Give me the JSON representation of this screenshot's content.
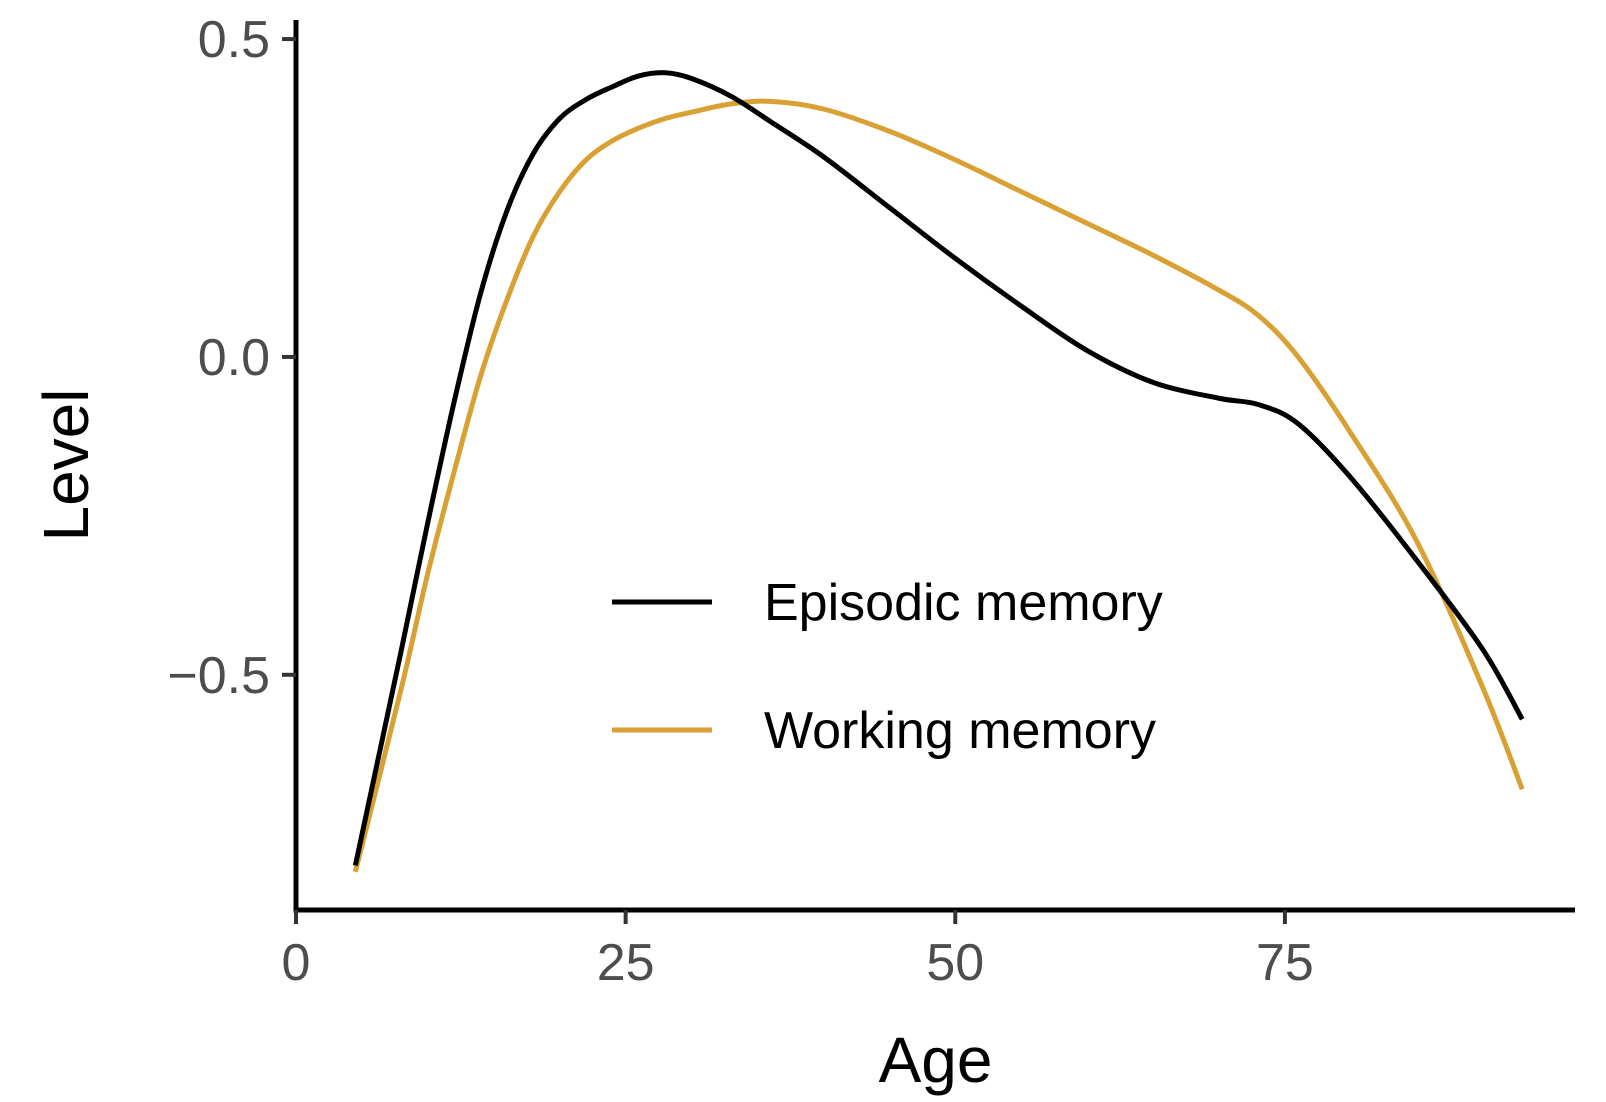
{
  "chart_data": {
    "type": "line",
    "xlabel": "Age",
    "ylabel": "Level",
    "xlim": [
      0,
      97
    ],
    "ylim": [
      -0.87,
      0.53
    ],
    "x_ticks": [
      0,
      25,
      50,
      75
    ],
    "x_tick_labels": [
      "0",
      "25",
      "50",
      "75"
    ],
    "y_ticks": [
      -0.5,
      0.0,
      0.5
    ],
    "y_tick_labels": [
      "−0.5",
      "0.0",
      "0.5"
    ],
    "grid": false,
    "legend_position": "bottom-center",
    "series": [
      {
        "name": "Episodic memory",
        "color": "#000000",
        "x": [
          4.5,
          8,
          10,
          12,
          14,
          16,
          18,
          20,
          22,
          24,
          26,
          28,
          30,
          33,
          36,
          40,
          45,
          50,
          55,
          60,
          65,
          70,
          73,
          76,
          80,
          85,
          90,
          93
        ],
        "y": [
          -0.8,
          -0.46,
          -0.26,
          -0.07,
          0.1,
          0.23,
          0.32,
          0.375,
          0.405,
          0.425,
          0.442,
          0.447,
          0.438,
          0.41,
          0.37,
          0.315,
          0.235,
          0.155,
          0.08,
          0.01,
          -0.04,
          -0.065,
          -0.075,
          -0.105,
          -0.19,
          -0.32,
          -0.46,
          -0.57
        ]
      },
      {
        "name": "Working memory",
        "color": "#D9A033",
        "x": [
          4.5,
          8,
          10,
          12,
          14,
          16,
          18,
          20,
          22,
          24,
          26,
          28,
          30,
          33,
          36,
          40,
          45,
          50,
          55,
          60,
          65,
          70,
          73,
          76,
          80,
          85,
          90,
          93
        ],
        "y": [
          -0.81,
          -0.52,
          -0.34,
          -0.18,
          -0.03,
          0.09,
          0.19,
          0.26,
          0.31,
          0.34,
          0.36,
          0.375,
          0.385,
          0.398,
          0.402,
          0.39,
          0.355,
          0.31,
          0.26,
          0.21,
          0.16,
          0.105,
          0.065,
          0.0,
          -0.12,
          -0.29,
          -0.52,
          -0.68
        ]
      }
    ]
  }
}
